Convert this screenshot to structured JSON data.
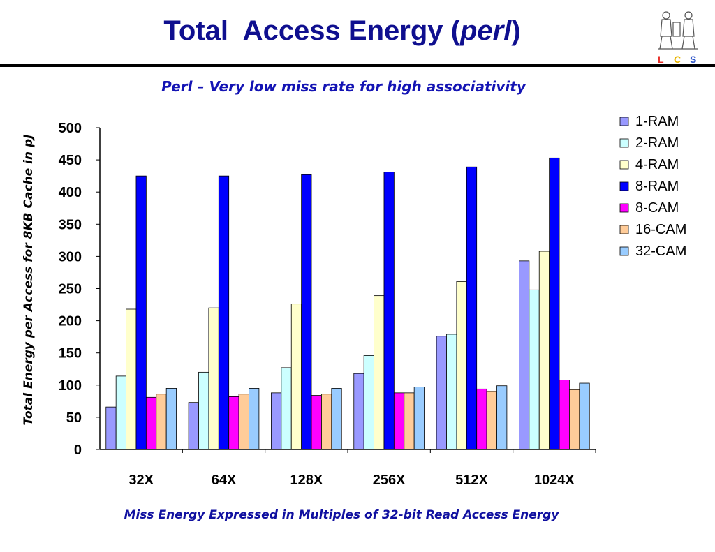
{
  "slide": {
    "title_main": "Total  Access Energy (",
    "title_italic": "perl",
    "title_end": ")",
    "subtitle": "Perl – Very low miss rate for high associativity",
    "footnote": "Miss Energy Expressed in Multiples of 32-bit Read Access Energy",
    "logo": {
      "icon": "lcs-logo-figures",
      "letters": [
        "L",
        "C",
        "S"
      ],
      "letter_colors": [
        "#e8302a",
        "#e8b400",
        "#2c54c8"
      ]
    }
  },
  "chart_data": {
    "type": "bar",
    "title": "",
    "xlabel": "",
    "ylabel": "Total Energy per Access for 8KB Cache in pJ",
    "ylim": [
      0,
      500
    ],
    "yticks": [
      0,
      50,
      100,
      150,
      200,
      250,
      300,
      350,
      400,
      450,
      500
    ],
    "grid": false,
    "legend": "right",
    "categories": [
      "32X",
      "64X",
      "128X",
      "256X",
      "512X",
      "1024X"
    ],
    "series": [
      {
        "name": "1-RAM",
        "color": "#9999ff",
        "values": [
          66,
          73,
          88,
          118,
          176,
          293
        ]
      },
      {
        "name": "2-RAM",
        "color": "#ccffff",
        "values": [
          114,
          120,
          127,
          146,
          179,
          248
        ]
      },
      {
        "name": "4-RAM",
        "color": "#ffffcc",
        "values": [
          218,
          220,
          226,
          239,
          261,
          308
        ]
      },
      {
        "name": "8-RAM",
        "color": "#0000ff",
        "values": [
          425,
          425,
          427,
          431,
          439,
          453
        ]
      },
      {
        "name": "8-CAM",
        "color": "#ff00ff",
        "values": [
          81,
          82,
          84,
          88,
          94,
          108
        ]
      },
      {
        "name": "16-CAM",
        "color": "#ffcc99",
        "values": [
          86,
          86,
          86,
          88,
          90,
          93
        ]
      },
      {
        "name": "32-CAM",
        "color": "#99ccff",
        "values": [
          95,
          95,
          95,
          97,
          99,
          103
        ]
      }
    ]
  }
}
